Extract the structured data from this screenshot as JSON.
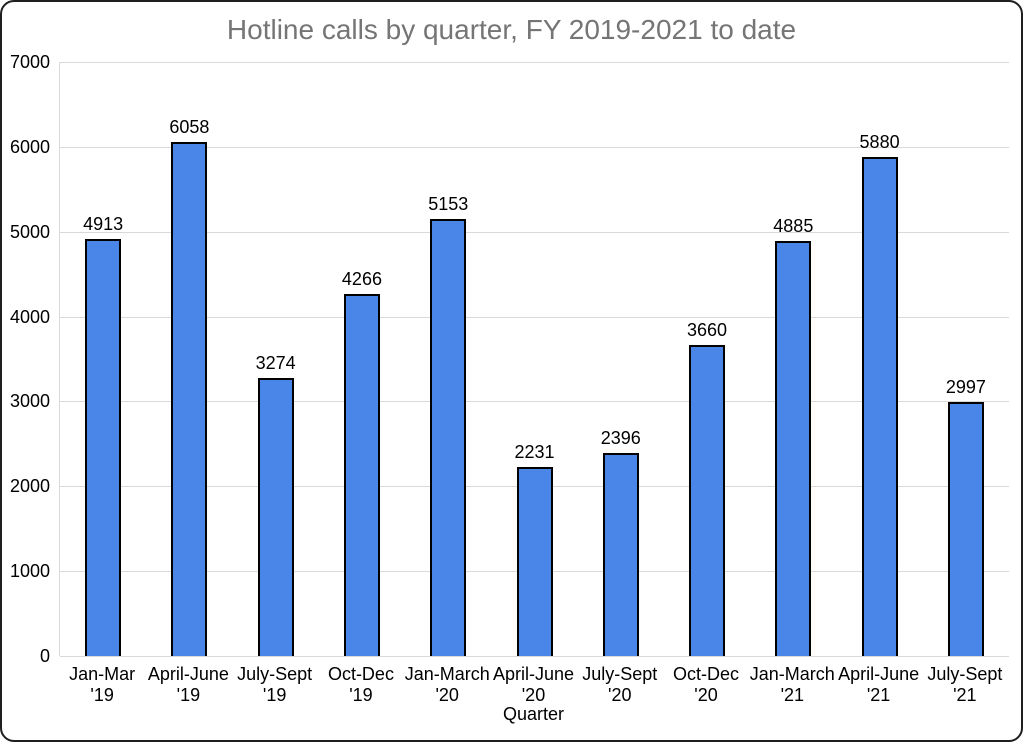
{
  "chart_data": {
    "type": "bar",
    "title": "Hotline calls by quarter, FY 2019-2021 to date",
    "xlabel": "Quarter",
    "ylabel": "",
    "ylim": [
      0,
      7000
    ],
    "ytick_interval": 1000,
    "grid": true,
    "legend": "none",
    "data_labels": true,
    "categories": [
      "Jan-Mar '19",
      "April-June '19",
      "July-Sept '19",
      "Oct-Dec '19",
      "Jan-March '20",
      "April-June '20",
      "July-Sept '20",
      "Oct-Dec '20",
      "Jan-March '21",
      "April-June '21",
      "July-Sept '21"
    ],
    "category_lines": [
      [
        "Jan-Mar '19"
      ],
      [
        "April-June",
        "'19"
      ],
      [
        "July-Sept",
        "'19"
      ],
      [
        "Oct-Dec '19"
      ],
      [
        "Jan-March",
        "'20"
      ],
      [
        "April-June",
        "'20"
      ],
      [
        "July-Sept '20"
      ],
      [
        "Oct-Dec '20"
      ],
      [
        "Jan-March",
        "'21"
      ],
      [
        "April-June",
        "'21"
      ],
      [
        "July-Sept '21"
      ]
    ],
    "values": [
      4913,
      6058,
      3274,
      4266,
      5153,
      2231,
      2396,
      3660,
      4885,
      5880,
      2997
    ],
    "colors": {
      "bar_fill": "#4a86e8",
      "bar_border": "#000000",
      "gridline": "#d9d9d9",
      "title_text": "#757575",
      "axis_text": "#000000"
    }
  }
}
